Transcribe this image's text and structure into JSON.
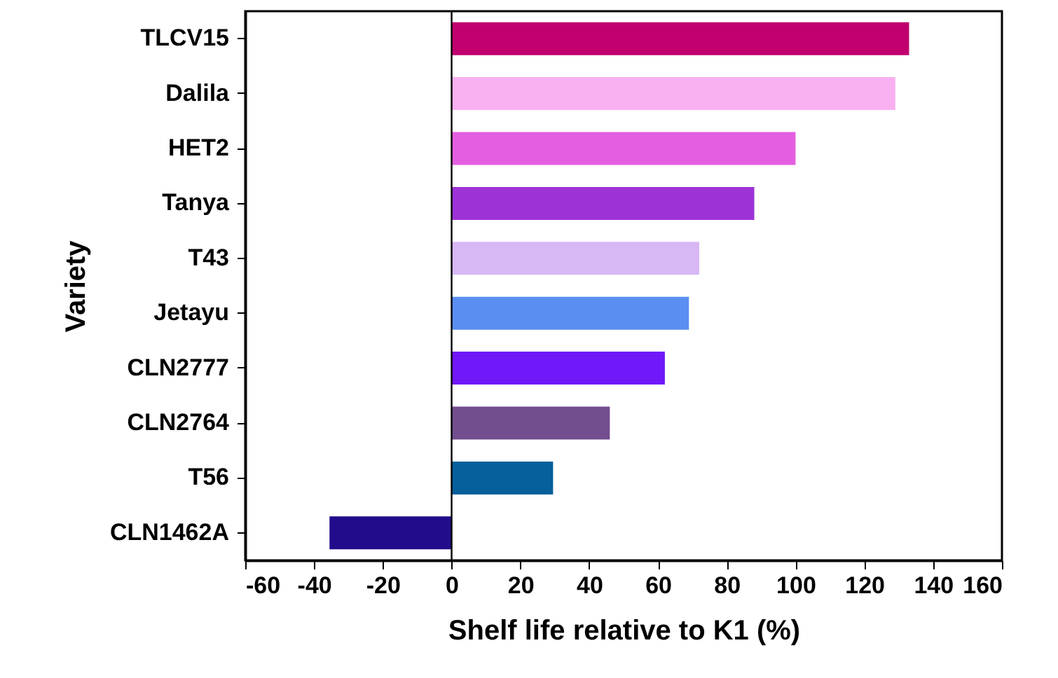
{
  "chart_data": {
    "type": "bar",
    "orientation": "horizontal",
    "xlabel": "Shelf life relative to K1 (%)",
    "ylabel": "Variety",
    "categories": [
      "TLCV15",
      "Dalila",
      "HET2",
      "Tanya",
      "T43",
      "Jetayu",
      "CLN2777",
      "CLN2764",
      "T56",
      "CLN1462A"
    ],
    "values": [
      133,
      129,
      100,
      88,
      72,
      69,
      62,
      46,
      29.5,
      -35.5
    ],
    "colors": [
      "#c0006e",
      "#f9b0f0",
      "#e45fe0",
      "#9d33d6",
      "#d8b8f4",
      "#5a8ef0",
      "#7118f8",
      "#734e8e",
      "#05609c",
      "#230c8c"
    ],
    "xlim": [
      -60,
      160
    ],
    "xticks": [
      -60,
      -40,
      -20,
      0,
      20,
      40,
      60,
      80,
      100,
      120,
      140,
      160
    ],
    "ref_lines": [
      {
        "axis": "x",
        "value": 0,
        "color": "#000000"
      }
    ],
    "grid": false
  }
}
